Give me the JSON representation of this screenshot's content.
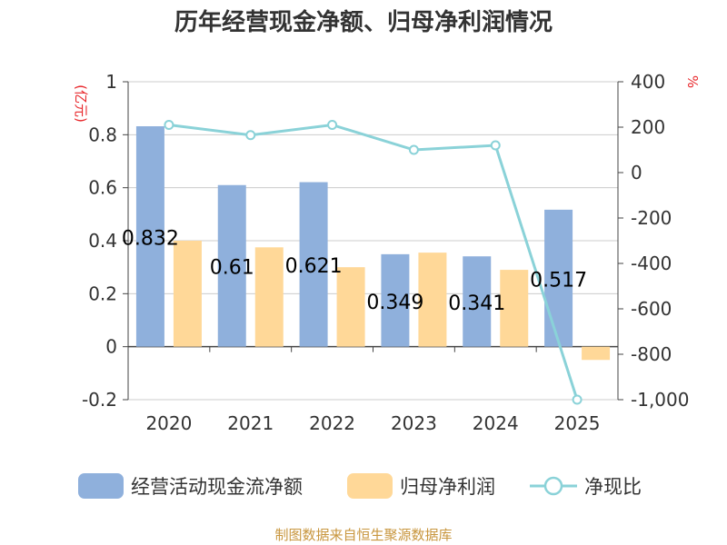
{
  "title": "历年经营现金净额、归母净利润情况",
  "source": "制图数据来自恒生聚源数据库",
  "colors": {
    "ocf": "#8fb0dc",
    "profit": "#ffd898",
    "ratio": "#8ad2d8",
    "unit": "#e8262a"
  },
  "chart_data": {
    "type": "bar",
    "categories": [
      "2020",
      "2021",
      "2022",
      "2023",
      "2024",
      "2025"
    ],
    "series": [
      {
        "name": "经营活动现金流净额",
        "type": "bar",
        "axis": "left",
        "values": [
          0.832,
          0.61,
          0.621,
          0.349,
          0.341,
          0.517
        ],
        "labels": [
          "0.832",
          "0.61",
          "0.621",
          "0.349",
          "0.341",
          "0.517"
        ]
      },
      {
        "name": "归母净利润",
        "type": "bar",
        "axis": "left",
        "values": [
          0.4,
          0.375,
          0.3,
          0.355,
          0.29,
          -0.05
        ]
      },
      {
        "name": "净现比",
        "type": "line",
        "axis": "right",
        "values": [
          210,
          165,
          210,
          100,
          120,
          -1000
        ]
      }
    ],
    "y_left": {
      "label": "(亿元)",
      "min": -0.2,
      "max": 1,
      "ticks": [
        "1",
        "0.8",
        "0.6",
        "0.4",
        "0.2",
        "0",
        "-0.2"
      ]
    },
    "y_right": {
      "label": "%",
      "min": -1000,
      "max": 400,
      "ticks": [
        "400",
        "200",
        "0",
        "-200",
        "-400",
        "-600",
        "-800",
        "-1,000"
      ]
    },
    "grid": true,
    "legend": "bottom"
  }
}
